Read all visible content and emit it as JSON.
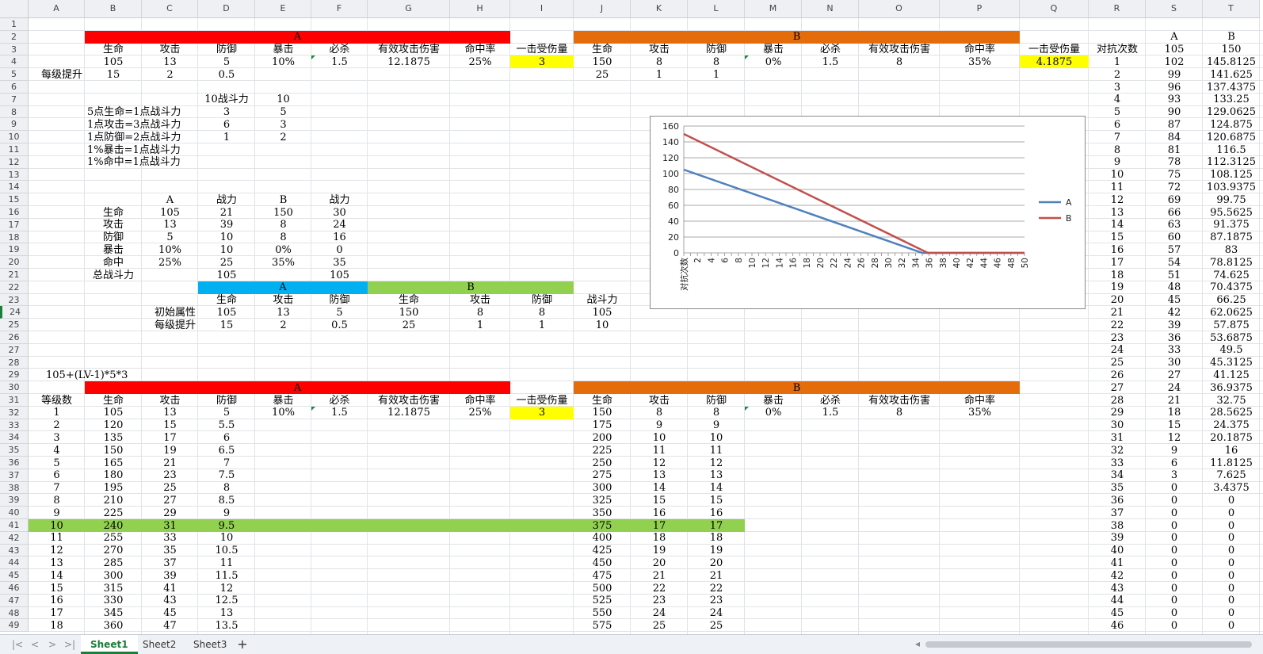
{
  "sheet": {
    "columns": [
      "A",
      "B",
      "C",
      "D",
      "E",
      "F",
      "G",
      "H",
      "I",
      "J",
      "K",
      "L",
      "M",
      "N",
      "O",
      "P",
      "Q",
      "R",
      "S",
      "T"
    ],
    "rows": [
      1,
      2,
      3,
      4,
      5,
      6,
      7,
      8,
      9,
      10,
      11,
      12,
      13,
      14,
      15,
      16,
      17,
      18,
      19,
      20,
      21,
      22,
      23,
      24,
      25,
      26,
      27,
      28,
      29,
      30,
      31,
      32,
      33,
      34,
      35,
      36,
      37,
      38,
      39,
      40,
      41,
      42,
      43,
      44,
      45,
      46,
      47,
      48,
      49
    ],
    "fills": [
      {
        "r": 2,
        "c1": "B",
        "c2": "H",
        "color": "#ff0000"
      },
      {
        "r": 2,
        "c1": "J",
        "c2": "P",
        "color": "#e46c0a"
      },
      {
        "r": 4,
        "c1": "I",
        "c2": "I",
        "color": "#ffff00"
      },
      {
        "r": 4,
        "c1": "Q",
        "c2": "Q",
        "color": "#ffff00"
      },
      {
        "r": 22,
        "c1": "D",
        "c2": "F",
        "color": "#00b0f0"
      },
      {
        "r": 22,
        "c1": "G",
        "c2": "I",
        "color": "#92d050"
      },
      {
        "r": 30,
        "c1": "B",
        "c2": "H",
        "color": "#ff0000"
      },
      {
        "r": 30,
        "c1": "J",
        "c2": "P",
        "color": "#e46c0a"
      },
      {
        "r": 32,
        "c1": "I",
        "c2": "I",
        "color": "#ffff00"
      },
      {
        "r": 41,
        "c1": "A",
        "c2": "L",
        "color": "#92d050"
      }
    ],
    "markers": [
      "F4",
      "M4",
      "F32",
      "M32"
    ],
    "cells": [
      {
        "r": 2,
        "c": "B",
        "span": "H",
        "v": "A"
      },
      {
        "r": 2,
        "c": "J",
        "span": "P",
        "v": "B"
      },
      {
        "r": 2,
        "c": "S",
        "v": "A"
      },
      {
        "r": 2,
        "c": "T",
        "v": "B"
      },
      {
        "r": 3,
        "c": "B",
        "v": "生命"
      },
      {
        "r": 3,
        "c": "C",
        "v": "攻击"
      },
      {
        "r": 3,
        "c": "D",
        "v": "防御"
      },
      {
        "r": 3,
        "c": "E",
        "v": "暴击"
      },
      {
        "r": 3,
        "c": "F",
        "v": "必杀"
      },
      {
        "r": 3,
        "c": "G",
        "v": "有效攻击伤害"
      },
      {
        "r": 3,
        "c": "H",
        "v": "命中率"
      },
      {
        "r": 3,
        "c": "I",
        "v": "一击受伤量"
      },
      {
        "r": 3,
        "c": "J",
        "v": "生命"
      },
      {
        "r": 3,
        "c": "K",
        "v": "攻击"
      },
      {
        "r": 3,
        "c": "L",
        "v": "防御"
      },
      {
        "r": 3,
        "c": "M",
        "v": "暴击"
      },
      {
        "r": 3,
        "c": "N",
        "v": "必杀"
      },
      {
        "r": 3,
        "c": "O",
        "v": "有效攻击伤害"
      },
      {
        "r": 3,
        "c": "P",
        "v": "命中率"
      },
      {
        "r": 3,
        "c": "Q",
        "v": "一击受伤量"
      },
      {
        "r": 3,
        "c": "R",
        "v": "对抗次数"
      },
      {
        "r": 3,
        "c": "S",
        "v": "105"
      },
      {
        "r": 3,
        "c": "T",
        "v": "150"
      },
      {
        "r": 4,
        "c": "B",
        "v": "105"
      },
      {
        "r": 4,
        "c": "C",
        "v": "13"
      },
      {
        "r": 4,
        "c": "D",
        "v": "5"
      },
      {
        "r": 4,
        "c": "E",
        "v": "10%"
      },
      {
        "r": 4,
        "c": "F",
        "v": "1.5"
      },
      {
        "r": 4,
        "c": "G",
        "v": "12.1875"
      },
      {
        "r": 4,
        "c": "H",
        "v": "25%"
      },
      {
        "r": 4,
        "c": "I",
        "v": "3"
      },
      {
        "r": 4,
        "c": "J",
        "v": "150"
      },
      {
        "r": 4,
        "c": "K",
        "v": "8"
      },
      {
        "r": 4,
        "c": "L",
        "v": "8"
      },
      {
        "r": 4,
        "c": "M",
        "v": "0%"
      },
      {
        "r": 4,
        "c": "N",
        "v": "1.5"
      },
      {
        "r": 4,
        "c": "O",
        "v": "8"
      },
      {
        "r": 4,
        "c": "P",
        "v": "35%"
      },
      {
        "r": 4,
        "c": "Q",
        "v": "4.1875"
      },
      {
        "r": 5,
        "c": "A",
        "v": "每级提升",
        "al": "right"
      },
      {
        "r": 5,
        "c": "B",
        "v": "15"
      },
      {
        "r": 5,
        "c": "C",
        "v": "2"
      },
      {
        "r": 5,
        "c": "D",
        "v": "0.5"
      },
      {
        "r": 5,
        "c": "J",
        "v": "25"
      },
      {
        "r": 5,
        "c": "K",
        "v": "1"
      },
      {
        "r": 5,
        "c": "L",
        "v": "1"
      },
      {
        "r": 7,
        "c": "D",
        "v": "10战斗力"
      },
      {
        "r": 7,
        "c": "E",
        "v": "10"
      },
      {
        "r": 8,
        "c": "B",
        "v": "5点生命=1点战斗力",
        "al": "left"
      },
      {
        "r": 8,
        "c": "D",
        "v": "3"
      },
      {
        "r": 8,
        "c": "E",
        "v": "5"
      },
      {
        "r": 9,
        "c": "B",
        "v": "1点攻击=3点战斗力",
        "al": "left"
      },
      {
        "r": 9,
        "c": "D",
        "v": "6"
      },
      {
        "r": 9,
        "c": "E",
        "v": "3"
      },
      {
        "r": 10,
        "c": "B",
        "v": "1点防御=2点战斗力",
        "al": "left"
      },
      {
        "r": 10,
        "c": "D",
        "v": "1"
      },
      {
        "r": 10,
        "c": "E",
        "v": "2"
      },
      {
        "r": 11,
        "c": "B",
        "v": "1%暴击=1点战斗力",
        "al": "left"
      },
      {
        "r": 12,
        "c": "B",
        "v": "1%命中=1点战斗力",
        "al": "left"
      },
      {
        "r": 15,
        "c": "C",
        "v": "A"
      },
      {
        "r": 15,
        "c": "D",
        "v": "战力"
      },
      {
        "r": 15,
        "c": "E",
        "v": "B"
      },
      {
        "r": 15,
        "c": "F",
        "v": "战力"
      },
      {
        "r": 16,
        "c": "B",
        "v": "生命"
      },
      {
        "r": 16,
        "c": "C",
        "v": "105"
      },
      {
        "r": 16,
        "c": "D",
        "v": "21"
      },
      {
        "r": 16,
        "c": "E",
        "v": "150"
      },
      {
        "r": 16,
        "c": "F",
        "v": "30"
      },
      {
        "r": 17,
        "c": "B",
        "v": "攻击"
      },
      {
        "r": 17,
        "c": "C",
        "v": "13"
      },
      {
        "r": 17,
        "c": "D",
        "v": "39"
      },
      {
        "r": 17,
        "c": "E",
        "v": "8"
      },
      {
        "r": 17,
        "c": "F",
        "v": "24"
      },
      {
        "r": 18,
        "c": "B",
        "v": "防御"
      },
      {
        "r": 18,
        "c": "C",
        "v": "5"
      },
      {
        "r": 18,
        "c": "D",
        "v": "10"
      },
      {
        "r": 18,
        "c": "E",
        "v": "8"
      },
      {
        "r": 18,
        "c": "F",
        "v": "16"
      },
      {
        "r": 19,
        "c": "B",
        "v": "暴击"
      },
      {
        "r": 19,
        "c": "C",
        "v": "10%"
      },
      {
        "r": 19,
        "c": "D",
        "v": "10"
      },
      {
        "r": 19,
        "c": "E",
        "v": "0%"
      },
      {
        "r": 19,
        "c": "F",
        "v": "0"
      },
      {
        "r": 20,
        "c": "B",
        "v": "命中"
      },
      {
        "r": 20,
        "c": "C",
        "v": "25%"
      },
      {
        "r": 20,
        "c": "D",
        "v": "25"
      },
      {
        "r": 20,
        "c": "E",
        "v": "35%"
      },
      {
        "r": 20,
        "c": "F",
        "v": "35"
      },
      {
        "r": 21,
        "c": "B",
        "v": "总战斗力"
      },
      {
        "r": 21,
        "c": "D",
        "v": "105"
      },
      {
        "r": 21,
        "c": "F",
        "v": "105"
      },
      {
        "r": 22,
        "c": "D",
        "span": "F",
        "v": "A"
      },
      {
        "r": 22,
        "c": "G",
        "span": "I",
        "v": "B"
      },
      {
        "r": 23,
        "c": "D",
        "v": "生命"
      },
      {
        "r": 23,
        "c": "E",
        "v": "攻击"
      },
      {
        "r": 23,
        "c": "F",
        "v": "防御"
      },
      {
        "r": 23,
        "c": "G",
        "v": "生命"
      },
      {
        "r": 23,
        "c": "H",
        "v": "攻击"
      },
      {
        "r": 23,
        "c": "I",
        "v": "防御"
      },
      {
        "r": 23,
        "c": "J",
        "v": "战斗力"
      },
      {
        "r": 24,
        "c": "C",
        "v": "初始属性",
        "al": "right"
      },
      {
        "r": 24,
        "c": "D",
        "v": "105"
      },
      {
        "r": 24,
        "c": "E",
        "v": "13"
      },
      {
        "r": 24,
        "c": "F",
        "v": "5"
      },
      {
        "r": 24,
        "c": "G",
        "v": "150"
      },
      {
        "r": 24,
        "c": "H",
        "v": "8"
      },
      {
        "r": 24,
        "c": "I",
        "v": "8"
      },
      {
        "r": 24,
        "c": "J",
        "v": "105"
      },
      {
        "r": 25,
        "c": "C",
        "v": "每级提升",
        "al": "right"
      },
      {
        "r": 25,
        "c": "D",
        "v": "15"
      },
      {
        "r": 25,
        "c": "E",
        "v": "2"
      },
      {
        "r": 25,
        "c": "F",
        "v": "0.5"
      },
      {
        "r": 25,
        "c": "G",
        "v": "25"
      },
      {
        "r": 25,
        "c": "H",
        "v": "1"
      },
      {
        "r": 25,
        "c": "I",
        "v": "1"
      },
      {
        "r": 25,
        "c": "J",
        "v": "10"
      },
      {
        "r": 29,
        "c": "B",
        "v": "105+(LV-1)*5*3",
        "al": "left",
        "off": -52
      },
      {
        "r": 30,
        "c": "B",
        "span": "H",
        "v": "A"
      },
      {
        "r": 30,
        "c": "J",
        "span": "P",
        "v": "B"
      },
      {
        "r": 31,
        "c": "A",
        "v": "等级数"
      },
      {
        "r": 31,
        "c": "B",
        "v": "生命"
      },
      {
        "r": 31,
        "c": "C",
        "v": "攻击"
      },
      {
        "r": 31,
        "c": "D",
        "v": "防御"
      },
      {
        "r": 31,
        "c": "E",
        "v": "暴击"
      },
      {
        "r": 31,
        "c": "F",
        "v": "必杀"
      },
      {
        "r": 31,
        "c": "G",
        "v": "有效攻击伤害"
      },
      {
        "r": 31,
        "c": "H",
        "v": "命中率"
      },
      {
        "r": 31,
        "c": "I",
        "v": "一击受伤量"
      },
      {
        "r": 31,
        "c": "J",
        "v": "生命"
      },
      {
        "r": 31,
        "c": "K",
        "v": "攻击"
      },
      {
        "r": 31,
        "c": "L",
        "v": "防御"
      },
      {
        "r": 31,
        "c": "M",
        "v": "暴击"
      },
      {
        "r": 31,
        "c": "N",
        "v": "必杀"
      },
      {
        "r": 31,
        "c": "O",
        "v": "有效攻击伤害"
      },
      {
        "r": 31,
        "c": "P",
        "v": "命中率"
      },
      {
        "r": 32,
        "c": "E",
        "v": "10%"
      },
      {
        "r": 32,
        "c": "F",
        "v": "1.5"
      },
      {
        "r": 32,
        "c": "G",
        "v": "12.1875"
      },
      {
        "r": 32,
        "c": "H",
        "v": "25%"
      },
      {
        "r": 32,
        "c": "I",
        "v": "3"
      },
      {
        "r": 32,
        "c": "M",
        "v": "0%"
      },
      {
        "r": 32,
        "c": "N",
        "v": "1.5"
      },
      {
        "r": 32,
        "c": "O",
        "v": "8"
      },
      {
        "r": 32,
        "c": "P",
        "v": "35%"
      }
    ],
    "level_table": {
      "start_row": 32,
      "rows": [
        [
          "1",
          "105",
          "13",
          "5",
          "150",
          "8",
          "8"
        ],
        [
          "2",
          "120",
          "15",
          "5.5",
          "175",
          "9",
          "9"
        ],
        [
          "3",
          "135",
          "17",
          "6",
          "200",
          "10",
          "10"
        ],
        [
          "4",
          "150",
          "19",
          "6.5",
          "225",
          "11",
          "11"
        ],
        [
          "5",
          "165",
          "21",
          "7",
          "250",
          "12",
          "12"
        ],
        [
          "6",
          "180",
          "23",
          "7.5",
          "275",
          "13",
          "13"
        ],
        [
          "7",
          "195",
          "25",
          "8",
          "300",
          "14",
          "14"
        ],
        [
          "8",
          "210",
          "27",
          "8.5",
          "325",
          "15",
          "15"
        ],
        [
          "9",
          "225",
          "29",
          "9",
          "350",
          "16",
          "16"
        ],
        [
          "10",
          "240",
          "31",
          "9.5",
          "375",
          "17",
          "17"
        ],
        [
          "11",
          "255",
          "33",
          "10",
          "400",
          "18",
          "18"
        ],
        [
          "12",
          "270",
          "35",
          "10.5",
          "425",
          "19",
          "19"
        ],
        [
          "13",
          "285",
          "37",
          "11",
          "450",
          "20",
          "20"
        ],
        [
          "14",
          "300",
          "39",
          "11.5",
          "475",
          "21",
          "21"
        ],
        [
          "15",
          "315",
          "41",
          "12",
          "500",
          "22",
          "22"
        ],
        [
          "16",
          "330",
          "43",
          "12.5",
          "525",
          "23",
          "23"
        ],
        [
          "17",
          "345",
          "45",
          "13",
          "550",
          "24",
          "24"
        ],
        [
          "18",
          "360",
          "47",
          "13.5",
          "575",
          "25",
          "25"
        ]
      ]
    },
    "battle_table": {
      "start_row": 4,
      "rows": [
        [
          "1",
          "102",
          "145.8125"
        ],
        [
          "2",
          "99",
          "141.625"
        ],
        [
          "3",
          "96",
          "137.4375"
        ],
        [
          "4",
          "93",
          "133.25"
        ],
        [
          "5",
          "90",
          "129.0625"
        ],
        [
          "6",
          "87",
          "124.875"
        ],
        [
          "7",
          "84",
          "120.6875"
        ],
        [
          "8",
          "81",
          "116.5"
        ],
        [
          "9",
          "78",
          "112.3125"
        ],
        [
          "10",
          "75",
          "108.125"
        ],
        [
          "11",
          "72",
          "103.9375"
        ],
        [
          "12",
          "69",
          "99.75"
        ],
        [
          "13",
          "66",
          "95.5625"
        ],
        [
          "14",
          "63",
          "91.375"
        ],
        [
          "15",
          "60",
          "87.1875"
        ],
        [
          "16",
          "57",
          "83"
        ],
        [
          "17",
          "54",
          "78.8125"
        ],
        [
          "18",
          "51",
          "74.625"
        ],
        [
          "19",
          "48",
          "70.4375"
        ],
        [
          "20",
          "45",
          "66.25"
        ],
        [
          "21",
          "42",
          "62.0625"
        ],
        [
          "22",
          "39",
          "57.875"
        ],
        [
          "23",
          "36",
          "53.6875"
        ],
        [
          "24",
          "33",
          "49.5"
        ],
        [
          "25",
          "30",
          "45.3125"
        ],
        [
          "26",
          "27",
          "41.125"
        ],
        [
          "27",
          "24",
          "36.9375"
        ],
        [
          "28",
          "21",
          "32.75"
        ],
        [
          "29",
          "18",
          "28.5625"
        ],
        [
          "30",
          "15",
          "24.375"
        ],
        [
          "31",
          "12",
          "20.1875"
        ],
        [
          "32",
          "9",
          "16"
        ],
        [
          "33",
          "6",
          "11.8125"
        ],
        [
          "34",
          "3",
          "7.625"
        ],
        [
          "35",
          "0",
          "3.4375"
        ],
        [
          "36",
          "0",
          "0"
        ],
        [
          "37",
          "0",
          "0"
        ],
        [
          "38",
          "0",
          "0"
        ],
        [
          "39",
          "0",
          "0"
        ],
        [
          "40",
          "0",
          "0"
        ],
        [
          "41",
          "0",
          "0"
        ],
        [
          "42",
          "0",
          "0"
        ],
        [
          "43",
          "0",
          "0"
        ],
        [
          "44",
          "0",
          "0"
        ],
        [
          "45",
          "0",
          "0"
        ],
        [
          "46",
          "0",
          "0"
        ]
      ]
    }
  },
  "chart_data": {
    "type": "line",
    "title": "",
    "xlabel": "对抗次数",
    "ylabel": "",
    "ylim": [
      0,
      160
    ],
    "yticks": [
      0,
      20,
      40,
      60,
      80,
      100,
      120,
      140,
      160
    ],
    "xticks": [
      "对抗次数",
      "2",
      "4",
      "6",
      "8",
      "10",
      "12",
      "14",
      "16",
      "18",
      "20",
      "22",
      "24",
      "26",
      "28",
      "30",
      "32",
      "34",
      "36",
      "38",
      "40",
      "42",
      "44",
      "46",
      "48",
      "50"
    ],
    "grid": true,
    "legend": "right",
    "series": [
      {
        "name": "A",
        "color": "#4f81bd",
        "x": [
          0,
          35,
          50
        ],
        "y": [
          105,
          0,
          0
        ]
      },
      {
        "name": "B",
        "color": "#c0504d",
        "x": [
          0,
          35.82,
          50
        ],
        "y": [
          150,
          0,
          0
        ]
      }
    ]
  },
  "tabs": {
    "items": [
      "Sheet1",
      "Sheet2",
      "Sheet3"
    ],
    "active": "Sheet1",
    "add": "+"
  },
  "nav": {
    "first": "|<",
    "prev": "<",
    "next": ">",
    "last": ">|",
    "scroll_left": "◂"
  }
}
